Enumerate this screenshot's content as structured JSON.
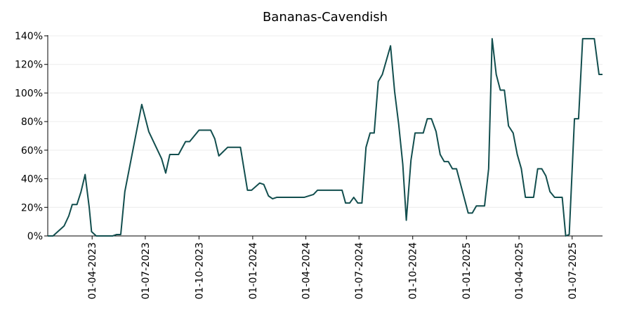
{
  "chart_data": {
    "type": "line",
    "title": "Bananas-Cavendish",
    "color": "#124e4e",
    "grid": true,
    "x": [
      "2023-01-15",
      "2023-01-24",
      "2023-02-12",
      "2023-02-20",
      "2023-02-26",
      "2023-03-06",
      "2023-03-13",
      "2023-03-20",
      "2023-03-27",
      "2023-03-31",
      "2023-04-08",
      "2023-05-06",
      "2023-05-13",
      "2023-05-20",
      "2023-05-27",
      "2023-06-25",
      "2023-07-07",
      "2023-07-29",
      "2023-08-05",
      "2023-08-12",
      "2023-08-27",
      "2023-09-08",
      "2023-09-15",
      "2023-10-01",
      "2023-10-21",
      "2023-10-28",
      "2023-11-04",
      "2023-11-19",
      "2023-12-11",
      "2023-12-23",
      "2023-12-30",
      "2024-01-13",
      "2024-01-20",
      "2024-01-28",
      "2024-02-04",
      "2024-02-11",
      "2024-03-29",
      "2024-04-14",
      "2024-04-21",
      "2024-06-02",
      "2024-06-08",
      "2024-06-15",
      "2024-06-22",
      "2024-06-29",
      "2024-07-06",
      "2024-07-13",
      "2024-07-20",
      "2024-07-27",
      "2024-08-03",
      "2024-08-10",
      "2024-08-24",
      "2024-08-31",
      "2024-09-07",
      "2024-09-14",
      "2024-09-20",
      "2024-09-28",
      "2024-10-05",
      "2024-10-19",
      "2024-10-26",
      "2024-11-02",
      "2024-11-10",
      "2024-11-17",
      "2024-11-24",
      "2024-12-01",
      "2024-12-08",
      "2024-12-15",
      "2025-01-04",
      "2025-01-11",
      "2025-01-18",
      "2025-02-01",
      "2025-02-08",
      "2025-02-14",
      "2025-02-21",
      "2025-02-28",
      "2025-03-07",
      "2025-03-14",
      "2025-03-22",
      "2025-03-29",
      "2025-04-05",
      "2025-04-12",
      "2025-04-26",
      "2025-05-03",
      "2025-05-10",
      "2025-05-17",
      "2025-05-24",
      "2025-06-01",
      "2025-06-14",
      "2025-06-20",
      "2025-06-26",
      "2025-07-05",
      "2025-07-12",
      "2025-07-19",
      "2025-08-08",
      "2025-08-16",
      "2025-08-22"
    ],
    "values": [
      0,
      0,
      7,
      14,
      22,
      22,
      31,
      43,
      20,
      3,
      0,
      0,
      1,
      1,
      31,
      92,
      73,
      54,
      44,
      57,
      57,
      66,
      66,
      74,
      74,
      68,
      56,
      62,
      62,
      32,
      32,
      37,
      36,
      28,
      26,
      27,
      27,
      29,
      32,
      32,
      23,
      23,
      27,
      23,
      23,
      62,
      72,
      72,
      108,
      113,
      133,
      101,
      78,
      50,
      11,
      53,
      72,
      72,
      82,
      82,
      73,
      57,
      52,
      52,
      47,
      47,
      16,
      16,
      21,
      21,
      47,
      138,
      113,
      102,
      102,
      77,
      72,
      57,
      47,
      27,
      27,
      47,
      47,
      42,
      31,
      27,
      27,
      0,
      1,
      82,
      82,
      138,
      138,
      113,
      113
    ],
    "xlim": [
      "2023-01-15",
      "2025-08-22"
    ],
    "xticks": [
      {
        "value": "2023-04-01",
        "label": "01-04-2023"
      },
      {
        "value": "2023-07-01",
        "label": "01-07-2023"
      },
      {
        "value": "2023-10-01",
        "label": "01-10-2023"
      },
      {
        "value": "2024-01-01",
        "label": "01-01-2024"
      },
      {
        "value": "2024-04-01",
        "label": "01-04-2024"
      },
      {
        "value": "2024-07-01",
        "label": "01-07-2024"
      },
      {
        "value": "2024-10-01",
        "label": "01-10-2024"
      },
      {
        "value": "2025-01-01",
        "label": "01-01-2025"
      },
      {
        "value": "2025-04-01",
        "label": "01-04-2025"
      },
      {
        "value": "2025-07-01",
        "label": "01-07-2025"
      }
    ],
    "ylim": [
      0,
      140
    ],
    "yticks": [
      {
        "value": 0,
        "label": "0%"
      },
      {
        "value": 20,
        "label": "20%"
      },
      {
        "value": 40,
        "label": "40%"
      },
      {
        "value": 60,
        "label": "60%"
      },
      {
        "value": 80,
        "label": "80%"
      },
      {
        "value": 100,
        "label": "100%"
      },
      {
        "value": 120,
        "label": "120%"
      },
      {
        "value": 140,
        "label": "140%"
      }
    ]
  }
}
